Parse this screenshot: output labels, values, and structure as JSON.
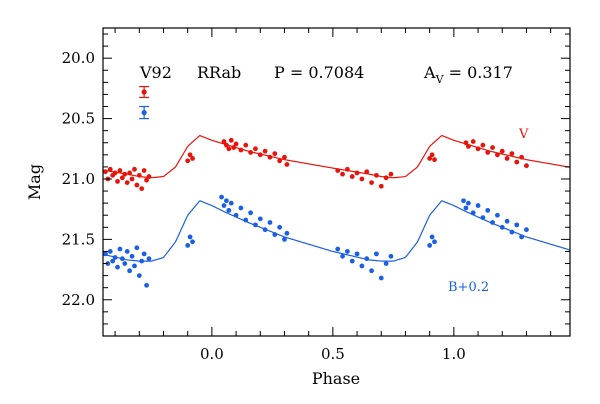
{
  "chart_data": {
    "type": "scatter",
    "title": "",
    "xlabel": "Phase",
    "ylabel": "Mag",
    "xlim": [
      -0.45,
      1.48
    ],
    "ylim": [
      22.3,
      19.75
    ],
    "y_inverted": true,
    "grid": false,
    "x_ticks": [
      0.0,
      0.5,
      1.0
    ],
    "x_tick_labels": [
      "0.0",
      "0.5",
      "1.0"
    ],
    "y_ticks": [
      20.0,
      20.5,
      21.0,
      21.5,
      22.0
    ],
    "y_tick_labels": [
      "20.0",
      "20.5",
      "21.0",
      "21.5",
      "22.0"
    ],
    "annotations": {
      "star": "V92",
      "type": "RRab",
      "period": "P = 0.7084",
      "amplitude_prefix": "A",
      "amplitude_subscript": "V",
      "amplitude_value": " = 0.317"
    },
    "error_bars": [
      {
        "series": "V",
        "x": -0.28,
        "y": 20.28,
        "err": 0.045,
        "color": "#e8140c"
      },
      {
        "series": "B+0.2",
        "x": -0.28,
        "y": 20.45,
        "err": 0.05,
        "color": "#1a5fe6"
      }
    ],
    "series": [
      {
        "name": "V",
        "color": "#e8140c",
        "label_position": "right",
        "template": {
          "phase": [
            0.0,
            0.05,
            0.15,
            0.3,
            0.5,
            0.65,
            0.7,
            0.75,
            0.8,
            0.85,
            0.9,
            0.95,
            1.0
          ],
          "mag": [
            20.68,
            20.71,
            20.77,
            20.84,
            20.91,
            20.96,
            20.98,
            20.99,
            20.98,
            20.9,
            20.73,
            20.64,
            20.68
          ]
        },
        "points": [
          [
            -0.44,
            20.94
          ],
          [
            -0.43,
            21.0
          ],
          [
            -0.42,
            20.92
          ],
          [
            -0.41,
            20.97
          ],
          [
            -0.4,
            20.95
          ],
          [
            -0.39,
            21.02
          ],
          [
            -0.38,
            20.93
          ],
          [
            -0.37,
            20.99
          ],
          [
            -0.36,
            20.96
          ],
          [
            -0.35,
            21.03
          ],
          [
            -0.34,
            20.95
          ],
          [
            -0.33,
            21.0
          ],
          [
            -0.32,
            20.92
          ],
          [
            -0.31,
            21.05
          ],
          [
            -0.3,
            20.97
          ],
          [
            -0.29,
            21.08
          ],
          [
            -0.28,
            20.93
          ],
          [
            -0.27,
            21.01
          ],
          [
            -0.26,
            20.98
          ],
          [
            -0.1,
            20.85
          ],
          [
            -0.09,
            20.8
          ],
          [
            -0.08,
            20.83
          ],
          [
            0.05,
            20.69
          ],
          [
            0.06,
            20.72
          ],
          [
            0.07,
            20.75
          ],
          [
            0.08,
            20.68
          ],
          [
            0.09,
            20.74
          ],
          [
            0.1,
            20.71
          ],
          [
            0.12,
            20.76
          ],
          [
            0.14,
            20.72
          ],
          [
            0.16,
            20.78
          ],
          [
            0.18,
            20.75
          ],
          [
            0.2,
            20.8
          ],
          [
            0.22,
            20.77
          ],
          [
            0.24,
            20.82
          ],
          [
            0.26,
            20.79
          ],
          [
            0.28,
            20.85
          ],
          [
            0.3,
            20.82
          ],
          [
            0.31,
            20.88
          ],
          [
            0.52,
            20.93
          ],
          [
            0.54,
            20.96
          ],
          [
            0.56,
            20.92
          ],
          [
            0.58,
            20.98
          ],
          [
            0.6,
            20.95
          ],
          [
            0.62,
            21.0
          ],
          [
            0.64,
            20.94
          ],
          [
            0.66,
            21.03
          ],
          [
            0.68,
            20.97
          ],
          [
            0.7,
            21.06
          ],
          [
            0.72,
            20.99
          ],
          [
            0.74,
            20.96
          ],
          [
            0.9,
            20.83
          ],
          [
            0.91,
            20.8
          ],
          [
            0.92,
            20.84
          ],
          [
            1.05,
            20.7
          ],
          [
            1.06,
            20.73
          ],
          [
            1.08,
            20.69
          ],
          [
            1.1,
            20.75
          ],
          [
            1.12,
            20.72
          ],
          [
            1.14,
            20.78
          ],
          [
            1.16,
            20.74
          ],
          [
            1.18,
            20.8
          ],
          [
            1.2,
            20.77
          ],
          [
            1.22,
            20.83
          ],
          [
            1.24,
            20.79
          ],
          [
            1.26,
            20.86
          ],
          [
            1.28,
            20.82
          ],
          [
            1.3,
            20.89
          ]
        ]
      },
      {
        "name": "B+0.2",
        "color": "#1a5fe6",
        "label_position": "bottom-right",
        "template": {
          "phase": [
            0.0,
            0.05,
            0.15,
            0.3,
            0.5,
            0.65,
            0.7,
            0.75,
            0.8,
            0.85,
            0.9,
            0.95,
            1.0
          ],
          "mag": [
            21.22,
            21.27,
            21.36,
            21.48,
            21.6,
            21.67,
            21.68,
            21.68,
            21.65,
            21.52,
            21.3,
            21.18,
            21.22
          ]
        },
        "points": [
          [
            -0.44,
            21.62
          ],
          [
            -0.43,
            21.7
          ],
          [
            -0.42,
            21.6
          ],
          [
            -0.41,
            21.68
          ],
          [
            -0.4,
            21.65
          ],
          [
            -0.39,
            21.73
          ],
          [
            -0.38,
            21.58
          ],
          [
            -0.37,
            21.66
          ],
          [
            -0.36,
            21.7
          ],
          [
            -0.35,
            21.6
          ],
          [
            -0.34,
            21.76
          ],
          [
            -0.33,
            21.64
          ],
          [
            -0.32,
            21.72
          ],
          [
            -0.31,
            21.57
          ],
          [
            -0.3,
            21.8
          ],
          [
            -0.29,
            21.68
          ],
          [
            -0.28,
            21.62
          ],
          [
            -0.27,
            21.88
          ],
          [
            -0.26,
            21.66
          ],
          [
            -0.1,
            21.55
          ],
          [
            -0.09,
            21.48
          ],
          [
            -0.08,
            21.52
          ],
          [
            0.04,
            21.15
          ],
          [
            0.05,
            21.22
          ],
          [
            0.06,
            21.18
          ],
          [
            0.07,
            21.26
          ],
          [
            0.08,
            21.2
          ],
          [
            0.1,
            21.3
          ],
          [
            0.12,
            21.24
          ],
          [
            0.14,
            21.34
          ],
          [
            0.16,
            21.28
          ],
          [
            0.18,
            21.38
          ],
          [
            0.2,
            21.33
          ],
          [
            0.22,
            21.42
          ],
          [
            0.24,
            21.36
          ],
          [
            0.26,
            21.46
          ],
          [
            0.28,
            21.4
          ],
          [
            0.3,
            21.5
          ],
          [
            0.31,
            21.45
          ],
          [
            0.52,
            21.58
          ],
          [
            0.54,
            21.64
          ],
          [
            0.56,
            21.6
          ],
          [
            0.58,
            21.68
          ],
          [
            0.6,
            21.62
          ],
          [
            0.62,
            21.72
          ],
          [
            0.64,
            21.66
          ],
          [
            0.66,
            21.76
          ],
          [
            0.68,
            21.62
          ],
          [
            0.7,
            21.82
          ],
          [
            0.72,
            21.7
          ],
          [
            0.74,
            21.64
          ],
          [
            0.9,
            21.55
          ],
          [
            0.91,
            21.48
          ],
          [
            0.92,
            21.52
          ],
          [
            1.04,
            21.18
          ],
          [
            1.05,
            21.24
          ],
          [
            1.06,
            21.2
          ],
          [
            1.08,
            21.28
          ],
          [
            1.1,
            21.22
          ],
          [
            1.12,
            21.32
          ],
          [
            1.14,
            21.26
          ],
          [
            1.16,
            21.36
          ],
          [
            1.18,
            21.3
          ],
          [
            1.2,
            21.4
          ],
          [
            1.22,
            21.35
          ],
          [
            1.24,
            21.44
          ],
          [
            1.26,
            21.38
          ],
          [
            1.28,
            21.48
          ],
          [
            1.3,
            21.42
          ]
        ]
      }
    ]
  }
}
